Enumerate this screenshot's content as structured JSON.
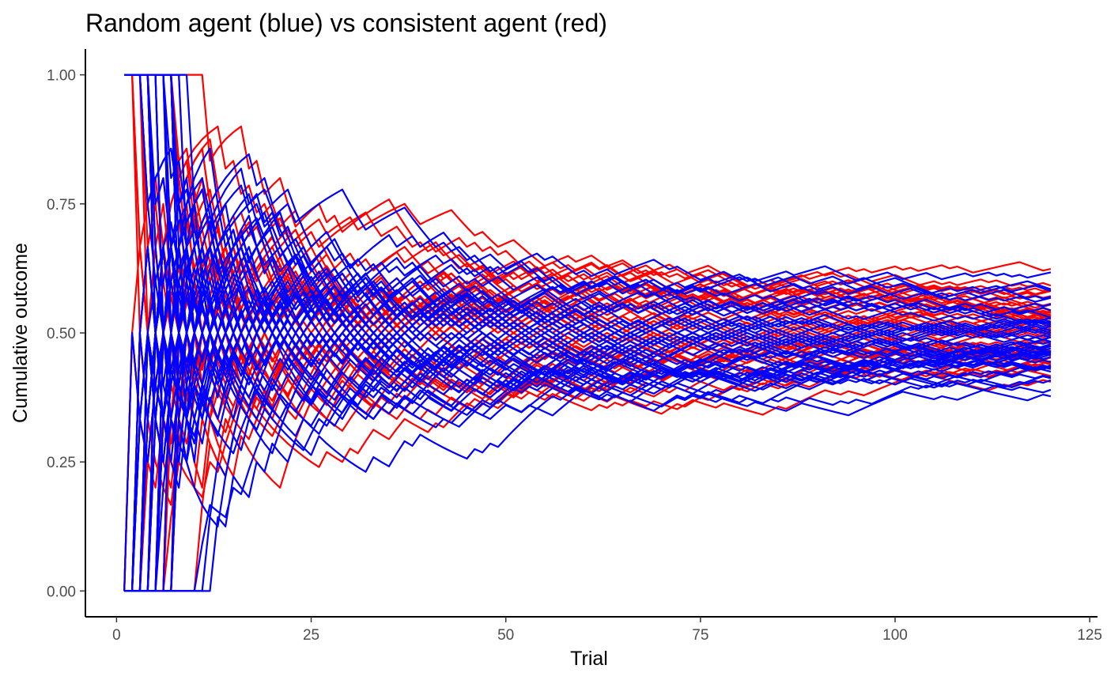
{
  "chart_data": {
    "type": "line",
    "title": "Random agent (blue) vs consistent agent (red)",
    "xlabel": "Trial",
    "ylabel": "Cumulative outcome",
    "xlim": [
      -4,
      126
    ],
    "ylim": [
      -0.05,
      1.05
    ],
    "x_ticks": [
      0,
      25,
      50,
      75,
      100,
      125
    ],
    "y_ticks": [
      0.0,
      0.25,
      0.5,
      0.75,
      1.0
    ],
    "x_tick_labels": [
      "0",
      "25",
      "50",
      "75",
      "100",
      "125"
    ],
    "y_tick_labels": [
      "0.00",
      "0.25",
      "0.50",
      "0.75",
      "1.00"
    ],
    "grid": false,
    "legend": "none",
    "trials": 120,
    "agents_per_group": 50,
    "series": [
      {
        "color": "#ff0000",
        "p_good": 0.5
      },
      {
        "color": "#0000ff",
        "p_good": 0.5
      }
    ]
  }
}
